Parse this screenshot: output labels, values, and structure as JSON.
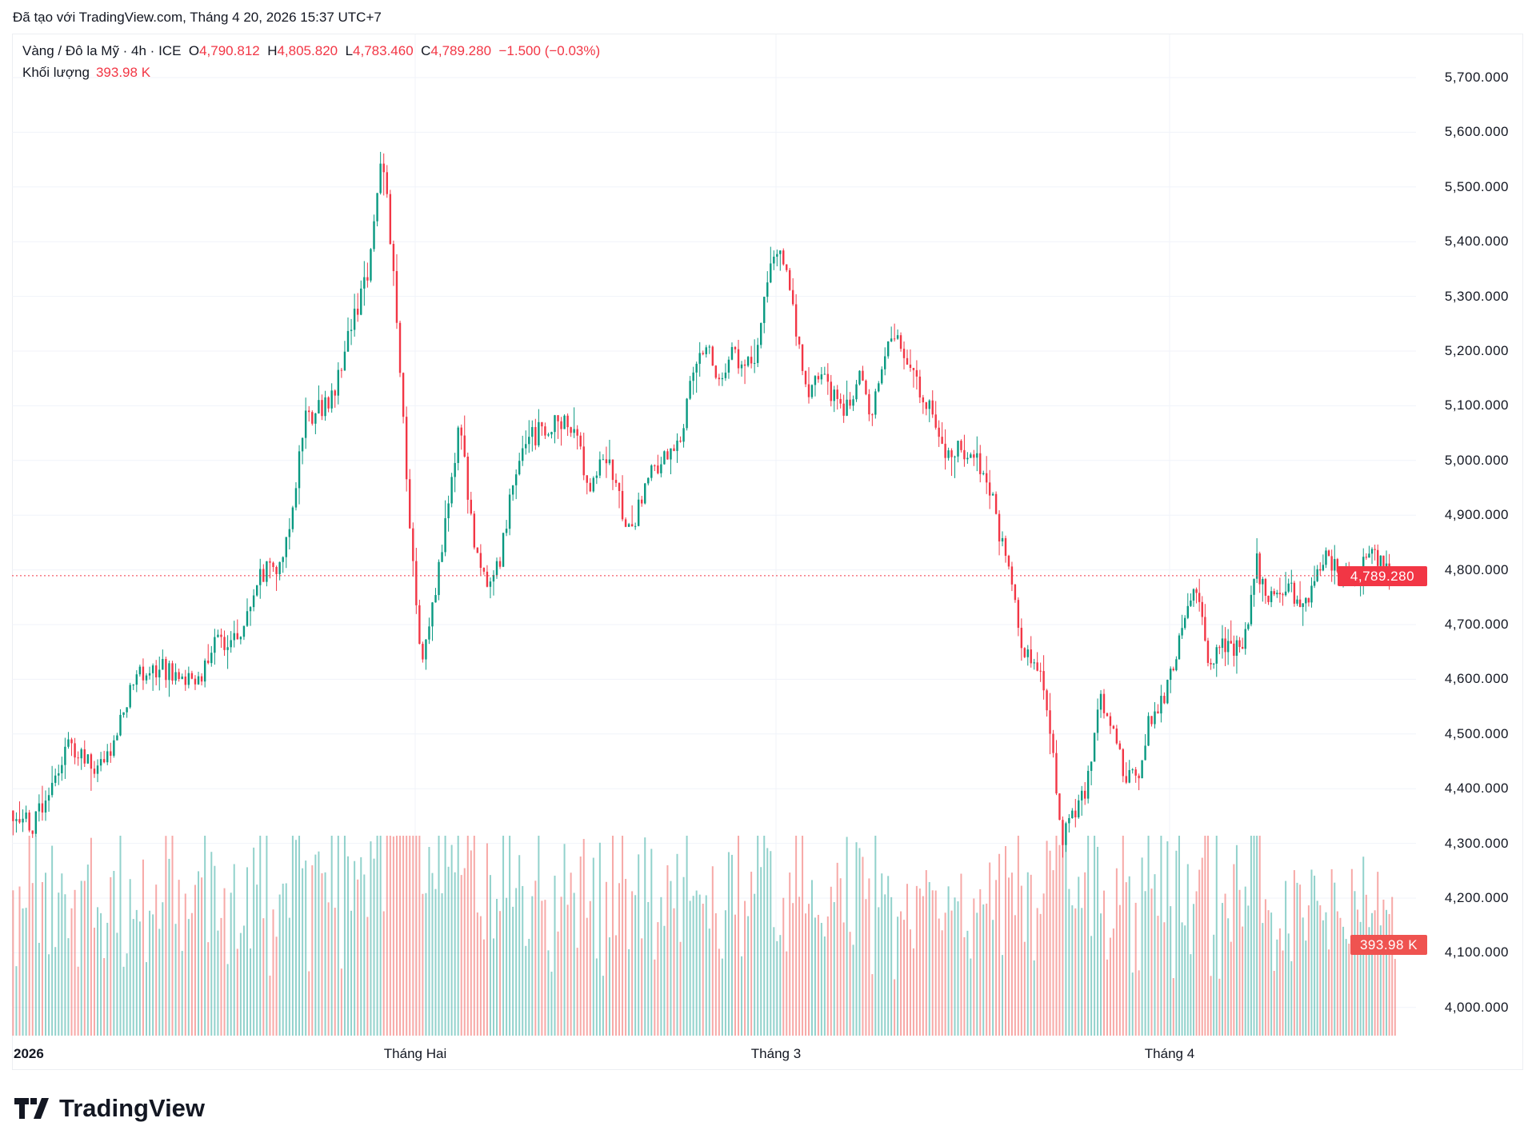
{
  "header": {
    "created_with": "Đã tạo với TradingView.com, Tháng 4 20, 2026 15:37 UTC+7"
  },
  "legend": {
    "symbol": "Vàng / Đô la Mỹ · 4h · ICE",
    "open_label": "O",
    "open": "4,790.812",
    "high_label": "H",
    "high": "4,805.820",
    "low_label": "L",
    "low": "4,783.460",
    "close_label": "C",
    "close": "4,789.280",
    "change": "−1.500 (−0.03%)",
    "volume_label": "Khối lượng",
    "volume": "393.98 K"
  },
  "badges": {
    "last_price": "4,789.280",
    "last_volume": "393.98 K"
  },
  "logo": {
    "text": "TradingView"
  },
  "colors": {
    "up": "#089981",
    "down": "#f23645",
    "vol_up": "#26a69a",
    "vol_down": "#ef5350",
    "grid": "#f0f3fa"
  },
  "chart_data": {
    "type": "candlestick",
    "title": "Vàng / Đô la Mỹ · 4h · ICE",
    "interval": "4h",
    "ylim": [
      3950,
      5750
    ],
    "y_ticks": [
      "4,000.000",
      "4,100.000",
      "4,200.000",
      "4,300.000",
      "4,400.000",
      "4,500.000",
      "4,600.000",
      "4,700.000",
      "4,800.000",
      "4,900.000",
      "5,000.000",
      "5,100.000",
      "5,200.000",
      "5,300.000",
      "5,400.000",
      "5,500.000",
      "5,600.000",
      "5,700.000"
    ],
    "x_ticks": [
      "2026",
      "Tháng Hai",
      "Tháng 3",
      "Tháng 4"
    ],
    "grid": true,
    "last_close": 4789.28,
    "approx_daily_close": [
      [
        "2026-01-01",
        4360
      ],
      [
        "2026-01-02",
        4320
      ],
      [
        "2026-01-03",
        4380
      ],
      [
        "2026-01-04",
        4440
      ],
      [
        "2026-01-05",
        4480
      ],
      [
        "2026-01-06",
        4460
      ],
      [
        "2026-01-07",
        4430
      ],
      [
        "2026-01-08",
        4470
      ],
      [
        "2026-01-09",
        4530
      ],
      [
        "2026-01-10",
        4620
      ],
      [
        "2026-01-11",
        4600
      ],
      [
        "2026-01-12",
        4620
      ],
      [
        "2026-01-13",
        4610
      ],
      [
        "2026-01-14",
        4600
      ],
      [
        "2026-01-15",
        4590
      ],
      [
        "2026-01-16",
        4680
      ],
      [
        "2026-01-17",
        4670
      ],
      [
        "2026-01-18",
        4670
      ],
      [
        "2026-01-19",
        4760
      ],
      [
        "2026-01-20",
        4800
      ],
      [
        "2026-01-21",
        4800
      ],
      [
        "2026-01-22",
        4900
      ],
      [
        "2026-01-23",
        5080
      ],
      [
        "2026-01-24",
        5090
      ],
      [
        "2026-01-25",
        5100
      ],
      [
        "2026-01-26",
        5200
      ],
      [
        "2026-01-27",
        5280
      ],
      [
        "2026-01-28",
        5350
      ],
      [
        "2026-01-29",
        5560
      ],
      [
        "2026-01-30",
        5300
      ],
      [
        "2026-01-31",
        4900
      ],
      [
        "2026-02-01",
        4620
      ],
      [
        "2026-02-02",
        4750
      ],
      [
        "2026-02-03",
        4900
      ],
      [
        "2026-02-04",
        5080
      ],
      [
        "2026-02-05",
        4850
      ],
      [
        "2026-02-06",
        4780
      ],
      [
        "2026-02-07",
        4800
      ],
      [
        "2026-02-08",
        4950
      ],
      [
        "2026-02-09",
        5030
      ],
      [
        "2026-02-10",
        5050
      ],
      [
        "2026-02-11",
        5060
      ],
      [
        "2026-02-12",
        5080
      ],
      [
        "2026-02-13",
        5050
      ],
      [
        "2026-02-14",
        4920
      ],
      [
        "2026-02-15",
        5010
      ],
      [
        "2026-02-16",
        4970
      ],
      [
        "2026-02-17",
        4870
      ],
      [
        "2026-02-18",
        4920
      ],
      [
        "2026-02-19",
        4990
      ],
      [
        "2026-02-20",
        5000
      ],
      [
        "2026-02-21",
        5030
      ],
      [
        "2026-02-22",
        5170
      ],
      [
        "2026-02-23",
        5220
      ],
      [
        "2026-02-24",
        5160
      ],
      [
        "2026-02-25",
        5190
      ],
      [
        "2026-02-26",
        5180
      ],
      [
        "2026-02-27",
        5200
      ],
      [
        "2026-02-28",
        5350
      ],
      [
        "2026-03-01",
        5380
      ],
      [
        "2026-03-02",
        5250
      ],
      [
        "2026-03-03",
        5100
      ],
      [
        "2026-03-04",
        5170
      ],
      [
        "2026-03-05",
        5120
      ],
      [
        "2026-03-06",
        5090
      ],
      [
        "2026-03-07",
        5150
      ],
      [
        "2026-03-08",
        5090
      ],
      [
        "2026-03-09",
        5190
      ],
      [
        "2026-03-10",
        5220
      ],
      [
        "2026-03-11",
        5190
      ],
      [
        "2026-03-12",
        5110
      ],
      [
        "2026-03-13",
        5080
      ],
      [
        "2026-03-14",
        5000
      ],
      [
        "2026-03-15",
        5020
      ],
      [
        "2026-03-16",
        5000
      ],
      [
        "2026-03-17",
        4980
      ],
      [
        "2026-03-18",
        4880
      ],
      [
        "2026-03-19",
        4780
      ],
      [
        "2026-03-20",
        4650
      ],
      [
        "2026-03-21",
        4640
      ],
      [
        "2026-03-22",
        4520
      ],
      [
        "2026-03-23",
        4300
      ],
      [
        "2026-03-24",
        4360
      ],
      [
        "2026-03-25",
        4400
      ],
      [
        "2026-03-26",
        4580
      ],
      [
        "2026-03-27",
        4500
      ],
      [
        "2026-03-28",
        4420
      ],
      [
        "2026-03-29",
        4430
      ],
      [
        "2026-03-30",
        4530
      ],
      [
        "2026-03-31",
        4560
      ],
      [
        "2026-04-01",
        4640
      ],
      [
        "2026-04-02",
        4740
      ],
      [
        "2026-04-03",
        4760
      ],
      [
        "2026-04-04",
        4620
      ],
      [
        "2026-04-05",
        4660
      ],
      [
        "2026-04-06",
        4650
      ],
      [
        "2026-04-07",
        4660
      ],
      [
        "2026-04-08",
        4820
      ],
      [
        "2026-04-09",
        4730
      ],
      [
        "2026-04-10",
        4770
      ],
      [
        "2026-04-11",
        4760
      ],
      [
        "2026-04-12",
        4720
      ],
      [
        "2026-04-13",
        4770
      ],
      [
        "2026-04-14",
        4830
      ],
      [
        "2026-04-15",
        4800
      ],
      [
        "2026-04-16",
        4790
      ],
      [
        "2026-04-17",
        4790
      ],
      [
        "2026-04-18",
        4840
      ],
      [
        "2026-04-19",
        4800
      ],
      [
        "2026-04-20",
        4789.28
      ]
    ]
  }
}
